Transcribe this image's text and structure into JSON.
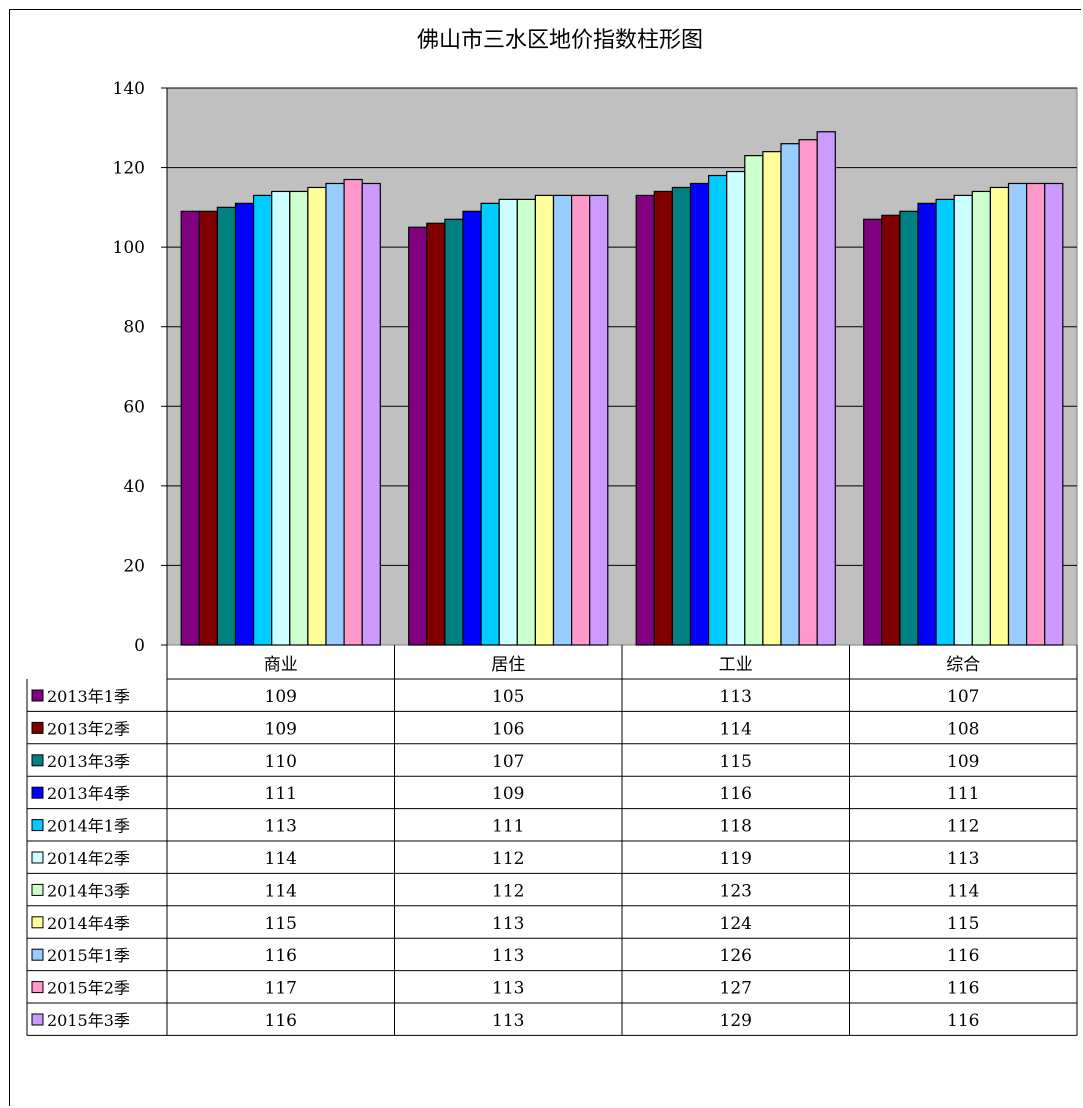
{
  "chart_data": {
    "type": "bar",
    "title": "佛山市三水区地价指数柱形图",
    "categories": [
      "商业",
      "居住",
      "工业",
      "综合"
    ],
    "ylim": [
      0,
      140
    ],
    "yticks": [
      0,
      20,
      40,
      60,
      80,
      100,
      120,
      140
    ],
    "grid": true,
    "legend": "data-table-left",
    "series": [
      {
        "name": "2013年1季",
        "color": "#800080",
        "values": [
          109,
          105,
          113,
          107
        ]
      },
      {
        "name": "2013年2季",
        "color": "#800000",
        "values": [
          109,
          106,
          114,
          108
        ]
      },
      {
        "name": "2013年3季",
        "color": "#008080",
        "values": [
          110,
          107,
          115,
          109
        ]
      },
      {
        "name": "2013年4季",
        "color": "#0000FF",
        "values": [
          111,
          109,
          116,
          111
        ]
      },
      {
        "name": "2014年1季",
        "color": "#00CCFF",
        "values": [
          113,
          111,
          118,
          112
        ]
      },
      {
        "name": "2014年2季",
        "color": "#CCFFFF",
        "values": [
          114,
          112,
          119,
          113
        ]
      },
      {
        "name": "2014年3季",
        "color": "#CCFFCC",
        "values": [
          114,
          112,
          123,
          114
        ]
      },
      {
        "name": "2014年4季",
        "color": "#FFFF99",
        "values": [
          115,
          113,
          124,
          115
        ]
      },
      {
        "name": "2015年1季",
        "color": "#99CCFF",
        "values": [
          116,
          113,
          126,
          116
        ]
      },
      {
        "name": "2015年2季",
        "color": "#FF99CC",
        "values": [
          117,
          113,
          127,
          116
        ]
      },
      {
        "name": "2015年3季",
        "color": "#CC99FF",
        "values": [
          116,
          113,
          129,
          116
        ]
      }
    ],
    "plot_background": "#C0C0C0"
  }
}
